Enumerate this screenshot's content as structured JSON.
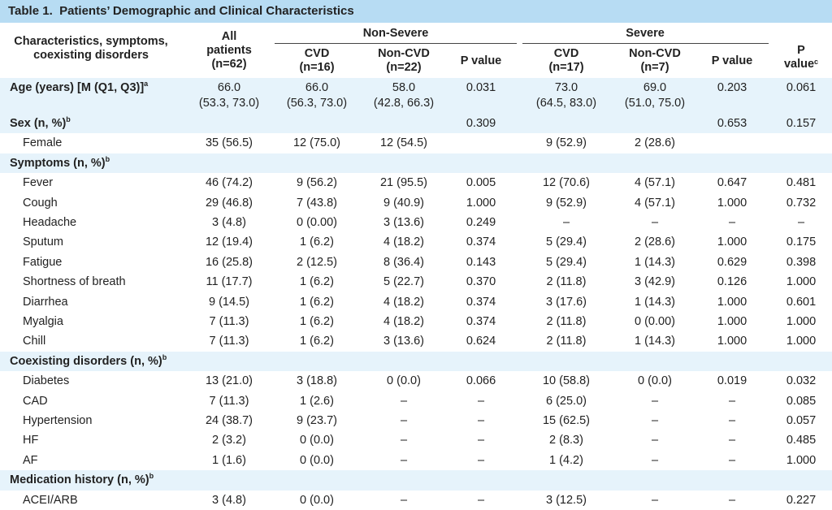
{
  "header": {
    "title": "Table 1.  Patients’ Demographic and Clinical Characteristics"
  },
  "table": {
    "first_column": "Characteristics, symptoms,\ncoexisting disorders",
    "all_column": "All\npatients\n(n=62)",
    "groups": [
      "Non-Severe",
      "Severe"
    ],
    "subcolumns": [
      "CVD\n(n=16)",
      "Non-CVD\n(n=22)",
      "P value",
      "CVD\n(n=17)",
      "Non-CVD\n(n=7)",
      "P value"
    ],
    "last_column": {
      "text": "P value",
      "sup": "c"
    },
    "rows": [
      {
        "label": "Age (years) [M (Q1, Q3)]",
        "sup": "a",
        "section": true,
        "cells": [
          [
            "66.0",
            "(53.3, 73.0)"
          ],
          [
            "66.0",
            "(56.3, 73.0)"
          ],
          [
            "58.0",
            "(42.8, 66.3)"
          ],
          "0.031",
          [
            "73.0",
            "(64.5, 83.0)"
          ],
          [
            "69.0",
            "(51.0, 75.0)"
          ],
          "0.203",
          "0.061"
        ]
      },
      {
        "label": "Sex (n, %)",
        "sup": "b",
        "section": true,
        "cells": [
          null,
          null,
          null,
          "0.309",
          null,
          null,
          "0.653",
          "0.157"
        ]
      },
      {
        "label": "Female",
        "cells": [
          "35 (56.5)",
          "12 (75.0)",
          "12 (54.5)",
          null,
          "9 (52.9)",
          "2 (28.6)",
          null,
          null
        ]
      },
      {
        "label": "Symptoms (n, %)",
        "sup": "b",
        "section": true,
        "cells": [
          null,
          null,
          null,
          null,
          null,
          null,
          null,
          null
        ]
      },
      {
        "label": "Fever",
        "cells": [
          "46 (74.2)",
          "9 (56.2)",
          "21 (95.5)",
          "0.005",
          "12 (70.6)",
          "4 (57.1)",
          "0.647",
          "0.481"
        ]
      },
      {
        "label": "Cough",
        "cells": [
          "29 (46.8)",
          "7 (43.8)",
          "9 (40.9)",
          "1.000",
          "9 (52.9)",
          "4 (57.1)",
          "1.000",
          "0.732"
        ]
      },
      {
        "label": "Headache",
        "cells": [
          "3 (4.8)",
          "0 (0.00)",
          "3 (13.6)",
          "0.249",
          "–",
          "–",
          "–",
          "–"
        ]
      },
      {
        "label": "Sputum",
        "cells": [
          "12 (19.4)",
          "1 (6.2)",
          "4 (18.2)",
          "0.374",
          "5 (29.4)",
          "2 (28.6)",
          "1.000",
          "0.175"
        ]
      },
      {
        "label": "Fatigue",
        "cells": [
          "16 (25.8)",
          "2 (12.5)",
          "8 (36.4)",
          "0.143",
          "5 (29.4)",
          "1 (14.3)",
          "0.629",
          "0.398"
        ]
      },
      {
        "label": "Shortness of breath",
        "cells": [
          "11 (17.7)",
          "1 (6.2)",
          "5 (22.7)",
          "0.370",
          "2 (11.8)",
          "3 (42.9)",
          "0.126",
          "1.000"
        ]
      },
      {
        "label": "Diarrhea",
        "cells": [
          "9 (14.5)",
          "1 (6.2)",
          "4 (18.2)",
          "0.374",
          "3 (17.6)",
          "1 (14.3)",
          "1.000",
          "0.601"
        ]
      },
      {
        "label": "Myalgia",
        "cells": [
          "7 (11.3)",
          "1 (6.2)",
          "4 (18.2)",
          "0.374",
          "2 (11.8)",
          "0 (0.00)",
          "1.000",
          "1.000"
        ]
      },
      {
        "label": "Chill",
        "cells": [
          "7 (11.3)",
          "1 (6.2)",
          "3 (13.6)",
          "0.624",
          "2 (11.8)",
          "1 (14.3)",
          "1.000",
          "1.000"
        ]
      },
      {
        "label": "Coexisting disorders (n, %)",
        "sup": "b",
        "section": true,
        "cells": [
          null,
          null,
          null,
          null,
          null,
          null,
          null,
          null
        ]
      },
      {
        "label": "Diabetes",
        "cells": [
          "13 (21.0)",
          "3 (18.8)",
          "0 (0.0)",
          "0.066",
          "10 (58.8)",
          "0 (0.0)",
          "0.019",
          "0.032"
        ]
      },
      {
        "label": "CAD",
        "cells": [
          "7 (11.3)",
          "1 (2.6)",
          "–",
          "–",
          "6 (25.0)",
          "–",
          "–",
          "0.085"
        ]
      },
      {
        "label": "Hypertension",
        "cells": [
          "24 (38.7)",
          "9 (23.7)",
          "–",
          "–",
          "15 (62.5)",
          "–",
          "–",
          "0.057"
        ]
      },
      {
        "label": "HF",
        "cells": [
          "2 (3.2)",
          "0 (0.0)",
          "–",
          "–",
          "2 (8.3)",
          "–",
          "–",
          "0.485"
        ]
      },
      {
        "label": "AF",
        "cells": [
          "1 (1.6)",
          "0 (0.0)",
          "–",
          "–",
          "1 (4.2)",
          "–",
          "–",
          "1.000"
        ]
      },
      {
        "label": "Medication history (n, %)",
        "sup": "b",
        "section": true,
        "cells": [
          null,
          null,
          null,
          null,
          null,
          null,
          null,
          null
        ]
      },
      {
        "label": "ACEI/ARB",
        "cells": [
          "3 (4.8)",
          "0 (0.0)",
          "–",
          "–",
          "3 (12.5)",
          "–",
          "–",
          "0.227"
        ]
      }
    ]
  }
}
